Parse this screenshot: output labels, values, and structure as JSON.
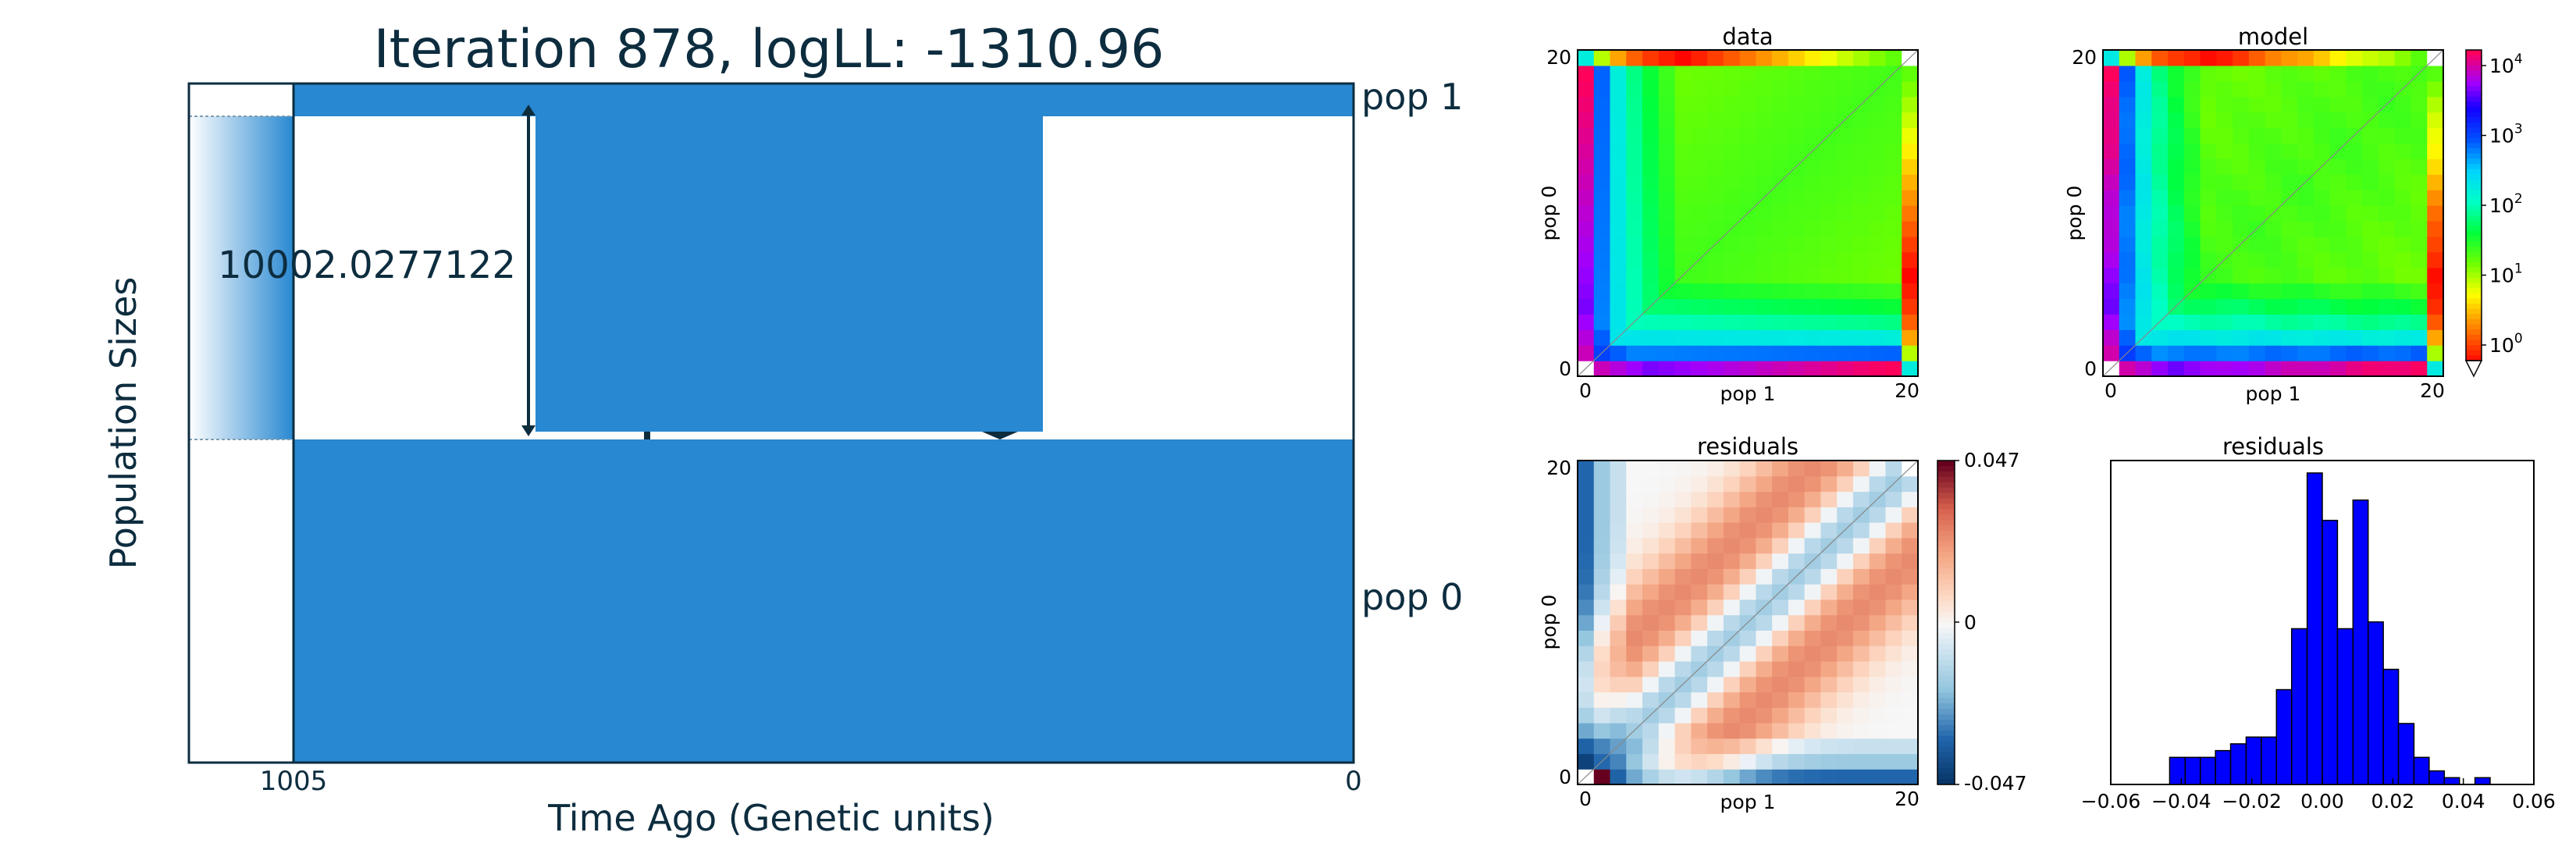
{
  "demography": {
    "title": "Iteration 878, logLL:   -1310.96",
    "ylabel": "Population Sizes",
    "xlabel": "Time Ago (Genetic units)",
    "xtick_start": "1005",
    "xtick_end": "0",
    "pop1_label": "pop 1",
    "pop0_label": "pop 0",
    "size_annotation": "10002.0277122",
    "fill_color": "#2888d1",
    "dark_color": "#0d2d3f"
  },
  "heatmaps": {
    "data_title": "data",
    "model_title": "model",
    "residual_title": "residuals",
    "xlabel": "pop 1",
    "ylabel": "pop 0",
    "tick_min": "0",
    "tick_max": "20",
    "n": 21,
    "colorbar_ticks": [
      "10",
      "10",
      "10",
      "10",
      "10"
    ],
    "colorbar_exps": [
      "4",
      "3",
      "2",
      "1",
      "0"
    ],
    "resid_colorbar_ticks": [
      "0.047",
      "0",
      "-0.047"
    ]
  },
  "chart_data": [
    {
      "type": "area",
      "title": "Iteration 878, logLL:   -1310.96",
      "xlabel": "Time Ago (Genetic units)",
      "ylabel": "Population Sizes",
      "x_ticks": [
        "1005",
        "0"
      ],
      "series": [
        {
          "name": "pop 1"
        },
        {
          "name": "pop 0"
        }
      ],
      "annotation": "10002.0277122"
    },
    {
      "type": "heatmap",
      "title": "data",
      "xlabel": "pop 1",
      "ylabel": "pop 0",
      "xlim": [
        0,
        20
      ],
      "ylim": [
        0,
        20
      ],
      "colorbar_range": [
        1,
        10000
      ],
      "colorbar_scale": "log"
    },
    {
      "type": "heatmap",
      "title": "model",
      "xlabel": "pop 1",
      "ylabel": "pop 0",
      "xlim": [
        0,
        20
      ],
      "ylim": [
        0,
        20
      ],
      "colorbar_range": [
        1,
        10000
      ],
      "colorbar_scale": "log"
    },
    {
      "type": "heatmap",
      "title": "residuals",
      "xlabel": "pop 1",
      "ylabel": "pop 0",
      "xlim": [
        0,
        20
      ],
      "ylim": [
        0,
        20
      ],
      "colorbar_range": [
        -0.047,
        0.047
      ]
    },
    {
      "type": "bar",
      "title": "residuals",
      "xlim": [
        -0.06,
        0.06
      ],
      "x_ticks": [
        "−0.06",
        "−0.04",
        "−0.02",
        "0.00",
        "0.02",
        "0.04",
        "0.06"
      ],
      "bin_edges": [
        -0.0433,
        -0.0389,
        -0.0346,
        -0.0303,
        -0.026,
        -0.0216,
        -0.0173,
        -0.013,
        -0.0087,
        -0.0043,
        0.0,
        0.0043,
        0.0087,
        0.013,
        0.0173,
        0.0216,
        0.026,
        0.0303,
        0.0346,
        0.0389,
        0.0433,
        0.0476
      ],
      "values": [
        4,
        4,
        4,
        5,
        6,
        7,
        7,
        14,
        23,
        46,
        39,
        23,
        42,
        24,
        17,
        9,
        4,
        2,
        1,
        0,
        1
      ],
      "bar_color": "#0000ff"
    }
  ]
}
